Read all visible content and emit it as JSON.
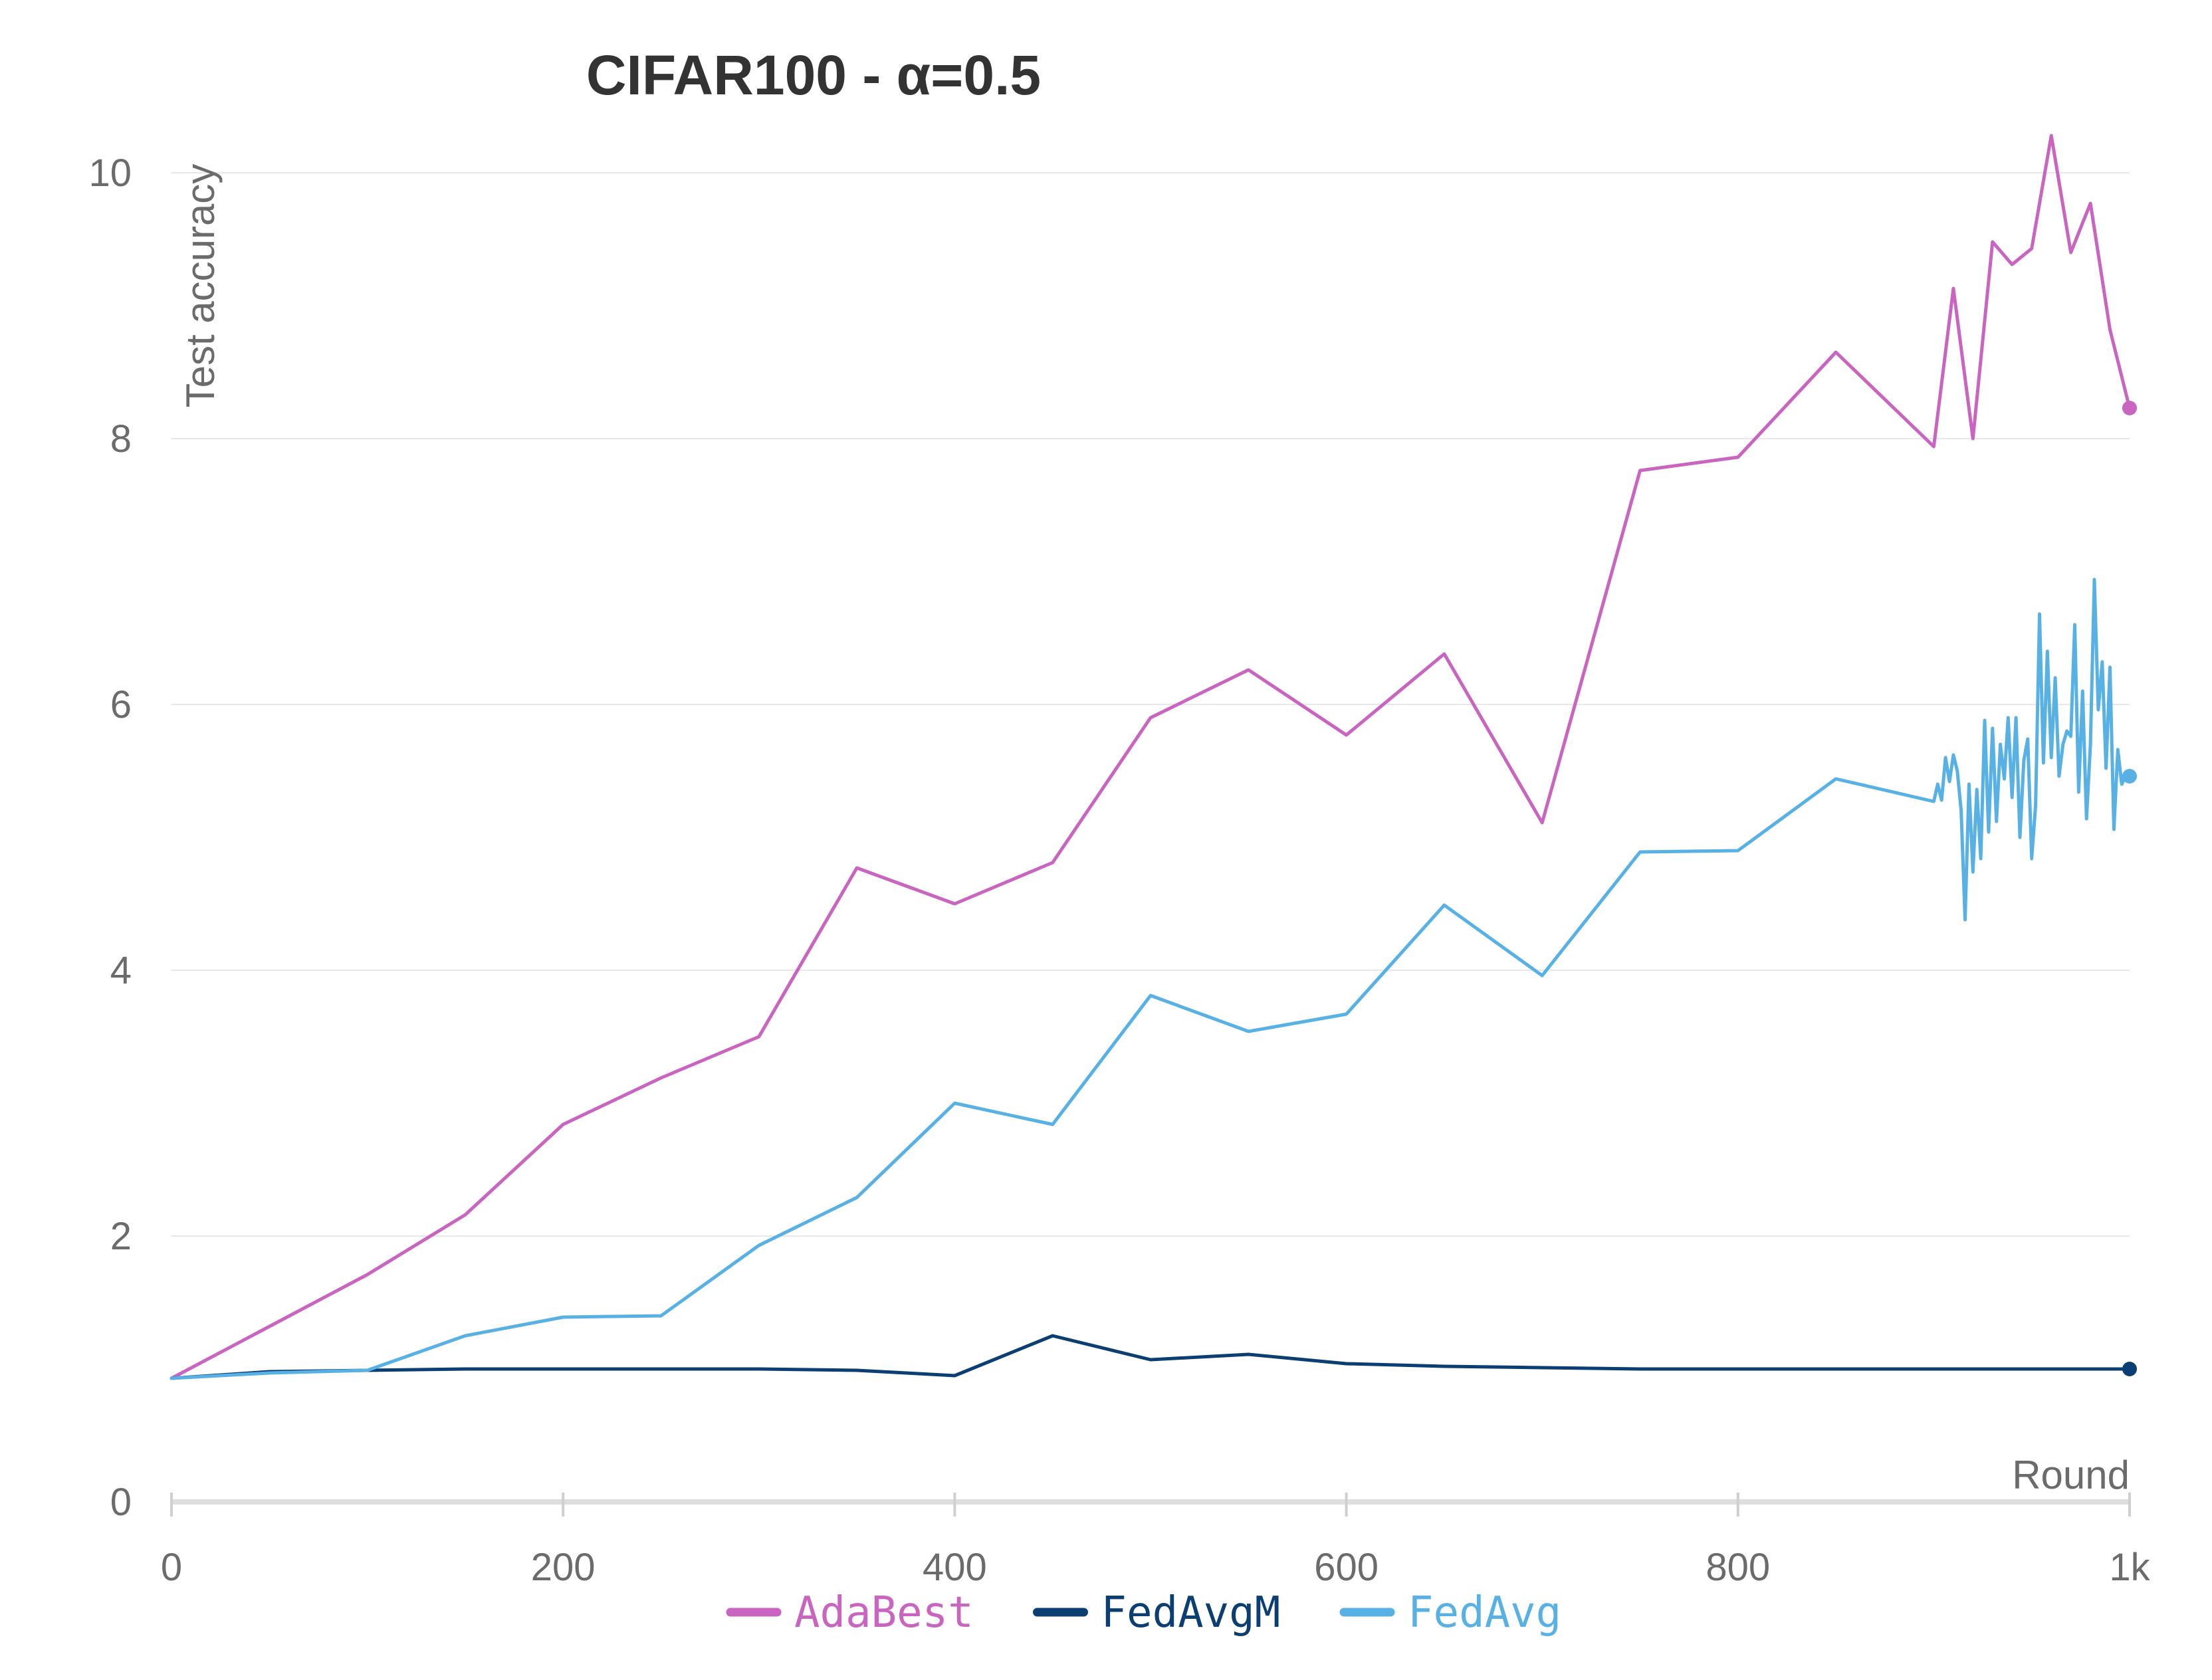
{
  "chart_data": {
    "type": "line",
    "title": "CIFAR100 - α=0.5",
    "xlabel": "Round",
    "ylabel": "Test accuracy",
    "xlim": [
      0,
      1000
    ],
    "ylim": [
      0,
      10.5
    ],
    "x_ticks": [
      {
        "value": 0,
        "label": "0"
      },
      {
        "value": 200,
        "label": "200"
      },
      {
        "value": 400,
        "label": "400"
      },
      {
        "value": 600,
        "label": "600"
      },
      {
        "value": 800,
        "label": "800"
      },
      {
        "value": 1000,
        "label": "1k"
      }
    ],
    "y_ticks": [
      {
        "value": 0,
        "label": "0"
      },
      {
        "value": 2,
        "label": "2"
      },
      {
        "value": 4,
        "label": "4"
      },
      {
        "value": 6,
        "label": "6"
      },
      {
        "value": 8,
        "label": "8"
      },
      {
        "value": 10,
        "label": "10"
      }
    ],
    "grid": true,
    "legend_position": "bottom",
    "series": [
      {
        "name": "AdaBest",
        "color": "#c965c0",
        "points": [
          [
            0,
            0.93
          ],
          [
            50,
            1.32
          ],
          [
            100,
            1.71
          ],
          [
            150,
            2.16
          ],
          [
            200,
            2.84
          ],
          [
            250,
            3.19
          ],
          [
            300,
            3.5
          ],
          [
            350,
            4.77
          ],
          [
            400,
            4.5
          ],
          [
            450,
            4.81
          ],
          [
            500,
            5.9
          ],
          [
            550,
            6.26
          ],
          [
            600,
            5.77
          ],
          [
            650,
            6.38
          ],
          [
            700,
            5.11
          ],
          [
            750,
            7.76
          ],
          [
            800,
            7.86
          ],
          [
            850,
            8.65
          ],
          [
            900,
            7.94
          ],
          [
            910,
            9.13
          ],
          [
            920,
            8.0
          ],
          [
            930,
            9.48
          ],
          [
            940,
            9.31
          ],
          [
            950,
            9.43
          ],
          [
            960,
            10.28
          ],
          [
            970,
            9.4
          ],
          [
            980,
            9.77
          ],
          [
            990,
            8.82
          ],
          [
            1000,
            8.23
          ]
        ]
      },
      {
        "name": "FedAvgM",
        "color": "#0b3f74",
        "points": [
          [
            0,
            0.93
          ],
          [
            50,
            0.98
          ],
          [
            100,
            0.99
          ],
          [
            150,
            1.0
          ],
          [
            200,
            1.0
          ],
          [
            250,
            1.0
          ],
          [
            300,
            1.0
          ],
          [
            350,
            0.99
          ],
          [
            400,
            0.95
          ],
          [
            450,
            1.25
          ],
          [
            500,
            1.07
          ],
          [
            550,
            1.11
          ],
          [
            600,
            1.04
          ],
          [
            650,
            1.02
          ],
          [
            700,
            1.01
          ],
          [
            750,
            1.0
          ],
          [
            800,
            1.0
          ],
          [
            850,
            1.0
          ],
          [
            900,
            1.0
          ],
          [
            950,
            1.0
          ],
          [
            1000,
            1.0
          ]
        ]
      },
      {
        "name": "FedAvg",
        "color": "#58b1e4",
        "points": [
          [
            0,
            0.93
          ],
          [
            50,
            0.97
          ],
          [
            100,
            0.99
          ],
          [
            150,
            1.25
          ],
          [
            200,
            1.39
          ],
          [
            250,
            1.4
          ],
          [
            300,
            1.93
          ],
          [
            350,
            2.29
          ],
          [
            400,
            3.0
          ],
          [
            450,
            2.84
          ],
          [
            500,
            3.81
          ],
          [
            550,
            3.54
          ],
          [
            600,
            3.67
          ],
          [
            650,
            4.49
          ],
          [
            700,
            3.96
          ],
          [
            750,
            4.89
          ],
          [
            800,
            4.9
          ],
          [
            850,
            5.44
          ],
          [
            900,
            5.27
          ],
          [
            902,
            5.4
          ],
          [
            904,
            5.28
          ],
          [
            906,
            5.6
          ],
          [
            908,
            5.42
          ],
          [
            910,
            5.62
          ],
          [
            912,
            5.5
          ],
          [
            914,
            5.2
          ],
          [
            916,
            4.38
          ],
          [
            918,
            5.4
          ],
          [
            920,
            4.74
          ],
          [
            922,
            5.36
          ],
          [
            924,
            4.84
          ],
          [
            926,
            5.88
          ],
          [
            928,
            5.04
          ],
          [
            930,
            5.82
          ],
          [
            932,
            5.12
          ],
          [
            934,
            5.7
          ],
          [
            936,
            5.44
          ],
          [
            938,
            5.9
          ],
          [
            940,
            5.3
          ],
          [
            942,
            5.9
          ],
          [
            944,
            5.0
          ],
          [
            946,
            5.58
          ],
          [
            948,
            5.74
          ],
          [
            950,
            4.84
          ],
          [
            952,
            5.24
          ],
          [
            954,
            6.68
          ],
          [
            956,
            5.56
          ],
          [
            958,
            6.4
          ],
          [
            960,
            5.6
          ],
          [
            962,
            6.2
          ],
          [
            964,
            5.46
          ],
          [
            966,
            5.7
          ],
          [
            968,
            5.8
          ],
          [
            970,
            5.76
          ],
          [
            972,
            6.6
          ],
          [
            974,
            5.34
          ],
          [
            976,
            6.1
          ],
          [
            978,
            5.14
          ],
          [
            980,
            5.7
          ],
          [
            982,
            6.94
          ],
          [
            984,
            5.96
          ],
          [
            986,
            6.32
          ],
          [
            988,
            5.52
          ],
          [
            990,
            6.28
          ],
          [
            992,
            5.06
          ],
          [
            994,
            5.66
          ],
          [
            996,
            5.4
          ],
          [
            998,
            5.46
          ],
          [
            1000,
            5.46
          ]
        ]
      }
    ]
  }
}
